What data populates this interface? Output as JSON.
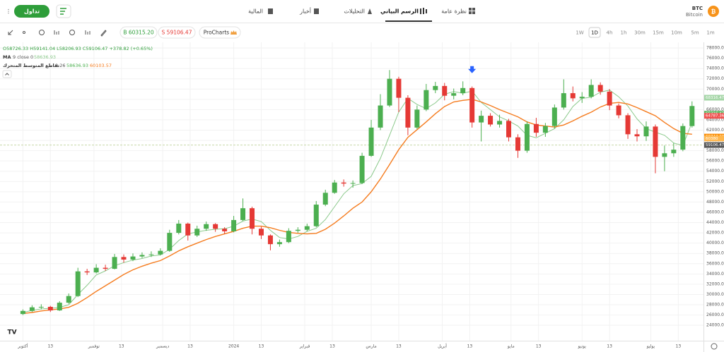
{
  "header": {
    "trade_button": "تداول",
    "tabs": [
      "المالية",
      "أخبار",
      "التحليلات",
      "الرسم البياني",
      "نظرة عامة"
    ],
    "symbol": "BTC",
    "symbol_name": "Bitcoin"
  },
  "toolbar": {
    "buy": "B 60315.20",
    "sell": "S 59106.47",
    "procharts": "ProCharts",
    "timeframes": [
      "1W",
      "1D",
      "4h",
      "1h",
      "30m",
      "15m",
      "10m",
      "5m",
      "1m"
    ]
  },
  "legend": {
    "ohlc": "O58726.33 H59141.04 L58206.93 C59106.47 +378.82 (+0.65%)",
    "ma": "MA",
    "ma_params": "9 close 0",
    "ma_value": "58636.93",
    "cross": "تقاطع المتوسط المتحرك",
    "cross_params": "9 26",
    "cross_fast": "58636.93",
    "cross_slow": "60103.57"
  },
  "chart_data": {
    "type": "candlestick",
    "up_color": "#4caf50",
    "down_color": "#e53935",
    "x": [
      0,
      4,
      8,
      12,
      16,
      20,
      24,
      28,
      32,
      36,
      40,
      44,
      48,
      52,
      56,
      60,
      64,
      68,
      72,
      76,
      80,
      84,
      88,
      92,
      96,
      100,
      104,
      108,
      112,
      116,
      120,
      124,
      128,
      132,
      136,
      140,
      144,
      148,
      152,
      156,
      160,
      164,
      168,
      172,
      176,
      180,
      184,
      188,
      192,
      196,
      200,
      204,
      208,
      212,
      216,
      220,
      224,
      228,
      232,
      236,
      240,
      244,
      248,
      252,
      256,
      260,
      264,
      268,
      272,
      276,
      280,
      284,
      288,
      292
    ],
    "open": [
      26200,
      26800,
      27500,
      27600,
      26900,
      28400,
      29700,
      34500,
      34300,
      35200,
      35000,
      37300,
      36800,
      37400,
      37700,
      37800,
      38500,
      42000,
      43800,
      41500,
      42800,
      43700,
      42800,
      42300,
      44500,
      46800,
      42800,
      41500,
      39800,
      40200,
      42400,
      42600,
      43300,
      47500,
      49800,
      51800,
      51600,
      51700,
      57000,
      62500,
      66800,
      72000,
      68300,
      62500,
      66000,
      69800,
      70600,
      68700,
      69200,
      70200,
      63500,
      64800,
      63100,
      63800,
      60600,
      58000,
      63200,
      61500,
      62800,
      66400,
      69200,
      68200,
      68500,
      70800,
      69500,
      66800,
      64900,
      61200,
      60800,
      62700,
      56800,
      57500,
      58200,
      62800
    ],
    "high": [
      27100,
      27900,
      28100,
      27800,
      28700,
      30200,
      35200,
      35000,
      35900,
      35800,
      37900,
      37800,
      38000,
      38200,
      38400,
      39000,
      42600,
      44500,
      44000,
      43400,
      44200,
      43900,
      43100,
      45300,
      48700,
      47100,
      43200,
      41700,
      40700,
      42900,
      43100,
      43800,
      48200,
      50400,
      52300,
      52400,
      52200,
      57600,
      64000,
      69000,
      73700,
      72400,
      68800,
      66800,
      71000,
      71400,
      71200,
      70100,
      71500,
      70500,
      65800,
      65300,
      65000,
      64200,
      61200,
      63700,
      64400,
      63400,
      67000,
      71900,
      70500,
      69400,
      71900,
      71300,
      70000,
      67200,
      65300,
      62200,
      63700,
      63100,
      59000,
      59500,
      63300,
      67600
    ],
    "low": [
      26000,
      26600,
      27100,
      26600,
      26800,
      28200,
      29500,
      33800,
      34100,
      34600,
      34900,
      36200,
      36500,
      37100,
      37300,
      37600,
      38300,
      41700,
      40500,
      41200,
      42400,
      42200,
      41800,
      42100,
      44300,
      41700,
      40800,
      38600,
      39300,
      40000,
      42000,
      42300,
      43100,
      47200,
      49600,
      51000,
      50800,
      51500,
      56800,
      62000,
      66500,
      65500,
      61000,
      62200,
      65700,
      69200,
      67800,
      68000,
      68800,
      62500,
      59800,
      62700,
      62500,
      59800,
      56600,
      57600,
      60700,
      60700,
      62300,
      66000,
      67600,
      67300,
      68200,
      68900,
      65900,
      64300,
      60300,
      59800,
      59900,
      53600,
      54000,
      56800,
      57900,
      62500
    ],
    "close": [
      26800,
      27500,
      27600,
      26900,
      28400,
      29700,
      34500,
      34300,
      35200,
      35000,
      37300,
      36800,
      37400,
      37700,
      37800,
      38500,
      42000,
      43800,
      41500,
      42800,
      43700,
      42800,
      42300,
      44500,
      46800,
      42800,
      41500,
      39800,
      40200,
      42400,
      42600,
      43300,
      47500,
      49800,
      51800,
      51600,
      51700,
      57000,
      62500,
      66800,
      72000,
      68300,
      62500,
      66000,
      69800,
      70600,
      68700,
      69200,
      70200,
      63500,
      64800,
      63100,
      63800,
      60600,
      58000,
      63200,
      61500,
      62800,
      66400,
      69200,
      68200,
      68500,
      70800,
      69500,
      66800,
      64900,
      61200,
      60800,
      62700,
      56800,
      57500,
      58200,
      62800,
      66700
    ],
    "series": [
      {
        "color": "#8bc98b",
        "values": [
          26500,
          26900,
          27200,
          27300,
          27500,
          28000,
          30000,
          31800,
          33800,
          34600,
          35600,
          36200,
          36700,
          37000,
          37500,
          37700,
          38800,
          40500,
          41800,
          42200,
          42500,
          42700,
          42800,
          43300,
          44300,
          44700,
          44200,
          42500,
          41100,
          40800,
          41300,
          42300,
          42900,
          44600,
          47100,
          49600,
          51200,
          51600,
          53000,
          56500,
          61000,
          65500,
          68200,
          67000,
          66200,
          67300,
          69000,
          69500,
          69200,
          69600,
          67400,
          66000,
          64600,
          63800,
          62800,
          61000,
          60500,
          61400,
          62300,
          64000,
          66600,
          68200,
          68400,
          69400,
          69800,
          68500,
          66700,
          64200,
          62300,
          61600,
          61000,
          59500,
          59000,
          63500
        ]
      },
      {
        "color": "#f57c1f",
        "values": [
          26300,
          26500,
          26800,
          27000,
          27200,
          27500,
          28300,
          29400,
          30600,
          31700,
          32800,
          33900,
          34800,
          35500,
          36100,
          36600,
          37500,
          38500,
          39300,
          40000,
          40700,
          41300,
          41800,
          42300,
          42900,
          43300,
          43300,
          43000,
          42500,
          42100,
          41900,
          41800,
          41900,
          42700,
          43900,
          45300,
          46800,
          48000,
          50000,
          52500,
          55300,
          58200,
          60600,
          62100,
          63600,
          65200,
          66600,
          67500,
          67800,
          68000,
          67500,
          66800,
          66000,
          65300,
          64600,
          63600,
          63000,
          62800,
          62600,
          63000,
          63800,
          64700,
          65500,
          66500,
          67200,
          67400,
          67100,
          66400,
          65600,
          64800,
          63500,
          62300,
          61400,
          61200
        ]
      }
    ],
    "xlim": [
      -10,
      297
    ],
    "xticks": [
      {
        "value": 0,
        "label": "أكتوبر"
      },
      {
        "value": 12,
        "label": "13"
      },
      {
        "value": 31,
        "label": "نوفمبر"
      },
      {
        "value": 43,
        "label": "13"
      },
      {
        "value": 61,
        "label": "ديسمبر"
      },
      {
        "value": 73,
        "label": "13"
      },
      {
        "value": 92,
        "label": "2024"
      },
      {
        "value": 104,
        "label": "13"
      },
      {
        "value": 123,
        "label": "فبراير"
      },
      {
        "value": 135,
        "label": "13"
      },
      {
        "value": 152,
        "label": "مارس"
      },
      {
        "value": 164,
        "label": "13"
      },
      {
        "value": 183,
        "label": "أبريل"
      },
      {
        "value": 195,
        "label": "13"
      },
      {
        "value": 213,
        "label": "مايو"
      },
      {
        "value": 225,
        "label": "13"
      },
      {
        "value": 244,
        "label": "يونيو"
      },
      {
        "value": 256,
        "label": "13"
      },
      {
        "value": 274,
        "label": "يوليو"
      },
      {
        "value": 286,
        "label": "13"
      }
    ],
    "ylim": [
      21000,
      79100
    ],
    "yticks": [
      {
        "value": 24000,
        "label": "24000.00"
      },
      {
        "value": 26000,
        "label": "26000.00"
      },
      {
        "value": 28000,
        "label": "28000.00"
      },
      {
        "value": 30000,
        "label": "30000.00"
      },
      {
        "value": 32000,
        "label": "32000.00"
      },
      {
        "value": 34000,
        "label": "34000.00"
      },
      {
        "value": 36000,
        "label": "36000.00"
      },
      {
        "value": 38000,
        "label": "38000.00"
      },
      {
        "value": 40000,
        "label": "40000.00"
      },
      {
        "value": 42000,
        "label": "42000.00"
      },
      {
        "value": 44000,
        "label": "44000.00"
      },
      {
        "value": 46000,
        "label": "46000.00"
      },
      {
        "value": 48000,
        "label": "48000.00"
      },
      {
        "value": 50000,
        "label": "50000.00"
      },
      {
        "value": 52000,
        "label": "52000.00"
      },
      {
        "value": 54000,
        "label": "54000.00"
      },
      {
        "value": 56000,
        "label": "56000.00"
      },
      {
        "value": 58000,
        "label": "58000.00"
      },
      {
        "value": 60000,
        "label": "60000.00"
      },
      {
        "value": 62000,
        "label": "62000.00"
      },
      {
        "value": 64000,
        "label": "64000.00"
      },
      {
        "value": 66000,
        "label": "66000.00"
      },
      {
        "value": 68000,
        "label": "68000.00"
      },
      {
        "value": 70000,
        "label": "70000.00"
      },
      {
        "value": 72000,
        "label": "72000.00"
      },
      {
        "value": 74000,
        "label": "74000.00"
      },
      {
        "value": 76000,
        "label": "76000.00"
      },
      {
        "value": 78000,
        "label": "78000.00"
      }
    ],
    "grid": true,
    "price_tags": [
      {
        "value": 68316.47,
        "color": "#a5d6a7"
      },
      {
        "value": 65216.47,
        "color": "#66bb6a"
      },
      {
        "value": 64787.36,
        "color": "#ef5350"
      },
      {
        "value": 60744.28,
        "color": "#fb8c00"
      },
      {
        "value": 60380.0,
        "color": "#ffb74d"
      }
    ],
    "crosshair": 59106.47,
    "arrow": {
      "x": 196,
      "y": 73500
    }
  }
}
